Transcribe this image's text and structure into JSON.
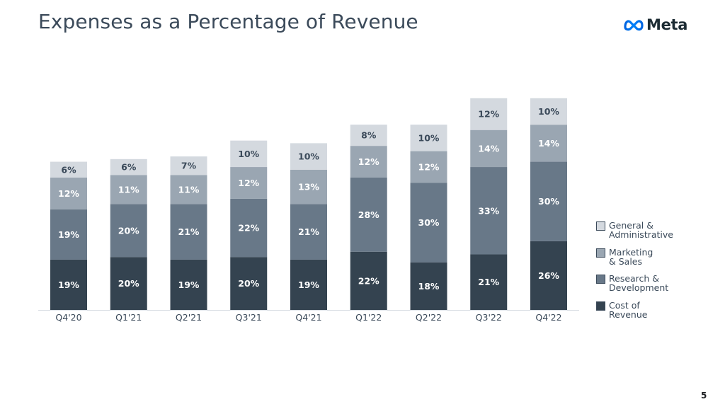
{
  "header": {
    "title": "Expenses as a Percentage of Revenue",
    "logo_text": "Meta",
    "logo_icon": "meta-infinity-icon"
  },
  "footer": {
    "page_number": "5"
  },
  "chart_data": {
    "type": "bar",
    "stacked": true,
    "categories": [
      "Q4'20",
      "Q1'21",
      "Q2'21",
      "Q3'21",
      "Q4'21",
      "Q1'22",
      "Q2'22",
      "Q3'22",
      "Q4'22"
    ],
    "series": [
      {
        "name": "Cost of\nRevenue",
        "color": "#344350",
        "label_color": "#ffffff",
        "values": [
          19,
          20,
          19,
          20,
          19,
          22,
          18,
          21,
          26
        ]
      },
      {
        "name": "Research &\nDevelopment",
        "color": "#687888",
        "label_color": "#ffffff",
        "values": [
          19,
          20,
          21,
          22,
          21,
          28,
          30,
          33,
          30
        ]
      },
      {
        "name": "Marketing\n& Sales",
        "color": "#9aa6b2",
        "label_color": "#ffffff",
        "values": [
          12,
          11,
          11,
          12,
          13,
          12,
          12,
          14,
          14
        ]
      },
      {
        "name": "General &\nAdministrative",
        "color": "#d4d9df",
        "label_color": "#3b4a5a",
        "values": [
          6,
          6,
          7,
          10,
          10,
          8,
          10,
          12,
          10
        ]
      }
    ],
    "value_suffix": "%",
    "legend_position": "right",
    "grid": false
  }
}
